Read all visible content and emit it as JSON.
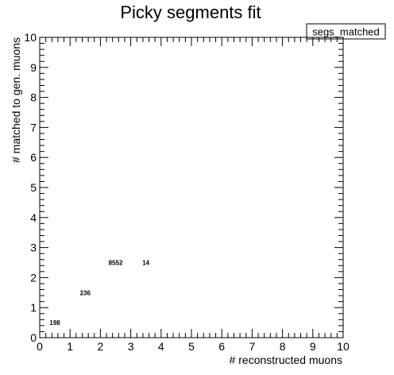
{
  "chart_data": {
    "type": "heatmap",
    "title": "Picky segments fit",
    "xlabel": "# reconstructed muons",
    "ylabel": "# matched to gen. muons",
    "legend": {
      "label": "segs_matched",
      "placement": "top-right"
    },
    "xlim": [
      0,
      10
    ],
    "ylim": [
      0,
      10
    ],
    "xticks": [
      "0",
      "1",
      "2",
      "3",
      "4",
      "5",
      "6",
      "7",
      "8",
      "9",
      "10"
    ],
    "yticks": [
      "0",
      "1",
      "2",
      "3",
      "4",
      "5",
      "6",
      "7",
      "8",
      "9",
      "10"
    ],
    "grid": false,
    "cells": [
      {
        "x": 0.5,
        "y": 0.5,
        "value": "198"
      },
      {
        "x": 1.5,
        "y": 1.5,
        "value": "236"
      },
      {
        "x": 2.5,
        "y": 2.5,
        "value": "8552"
      },
      {
        "x": 3.5,
        "y": 2.5,
        "value": "14"
      }
    ]
  }
}
